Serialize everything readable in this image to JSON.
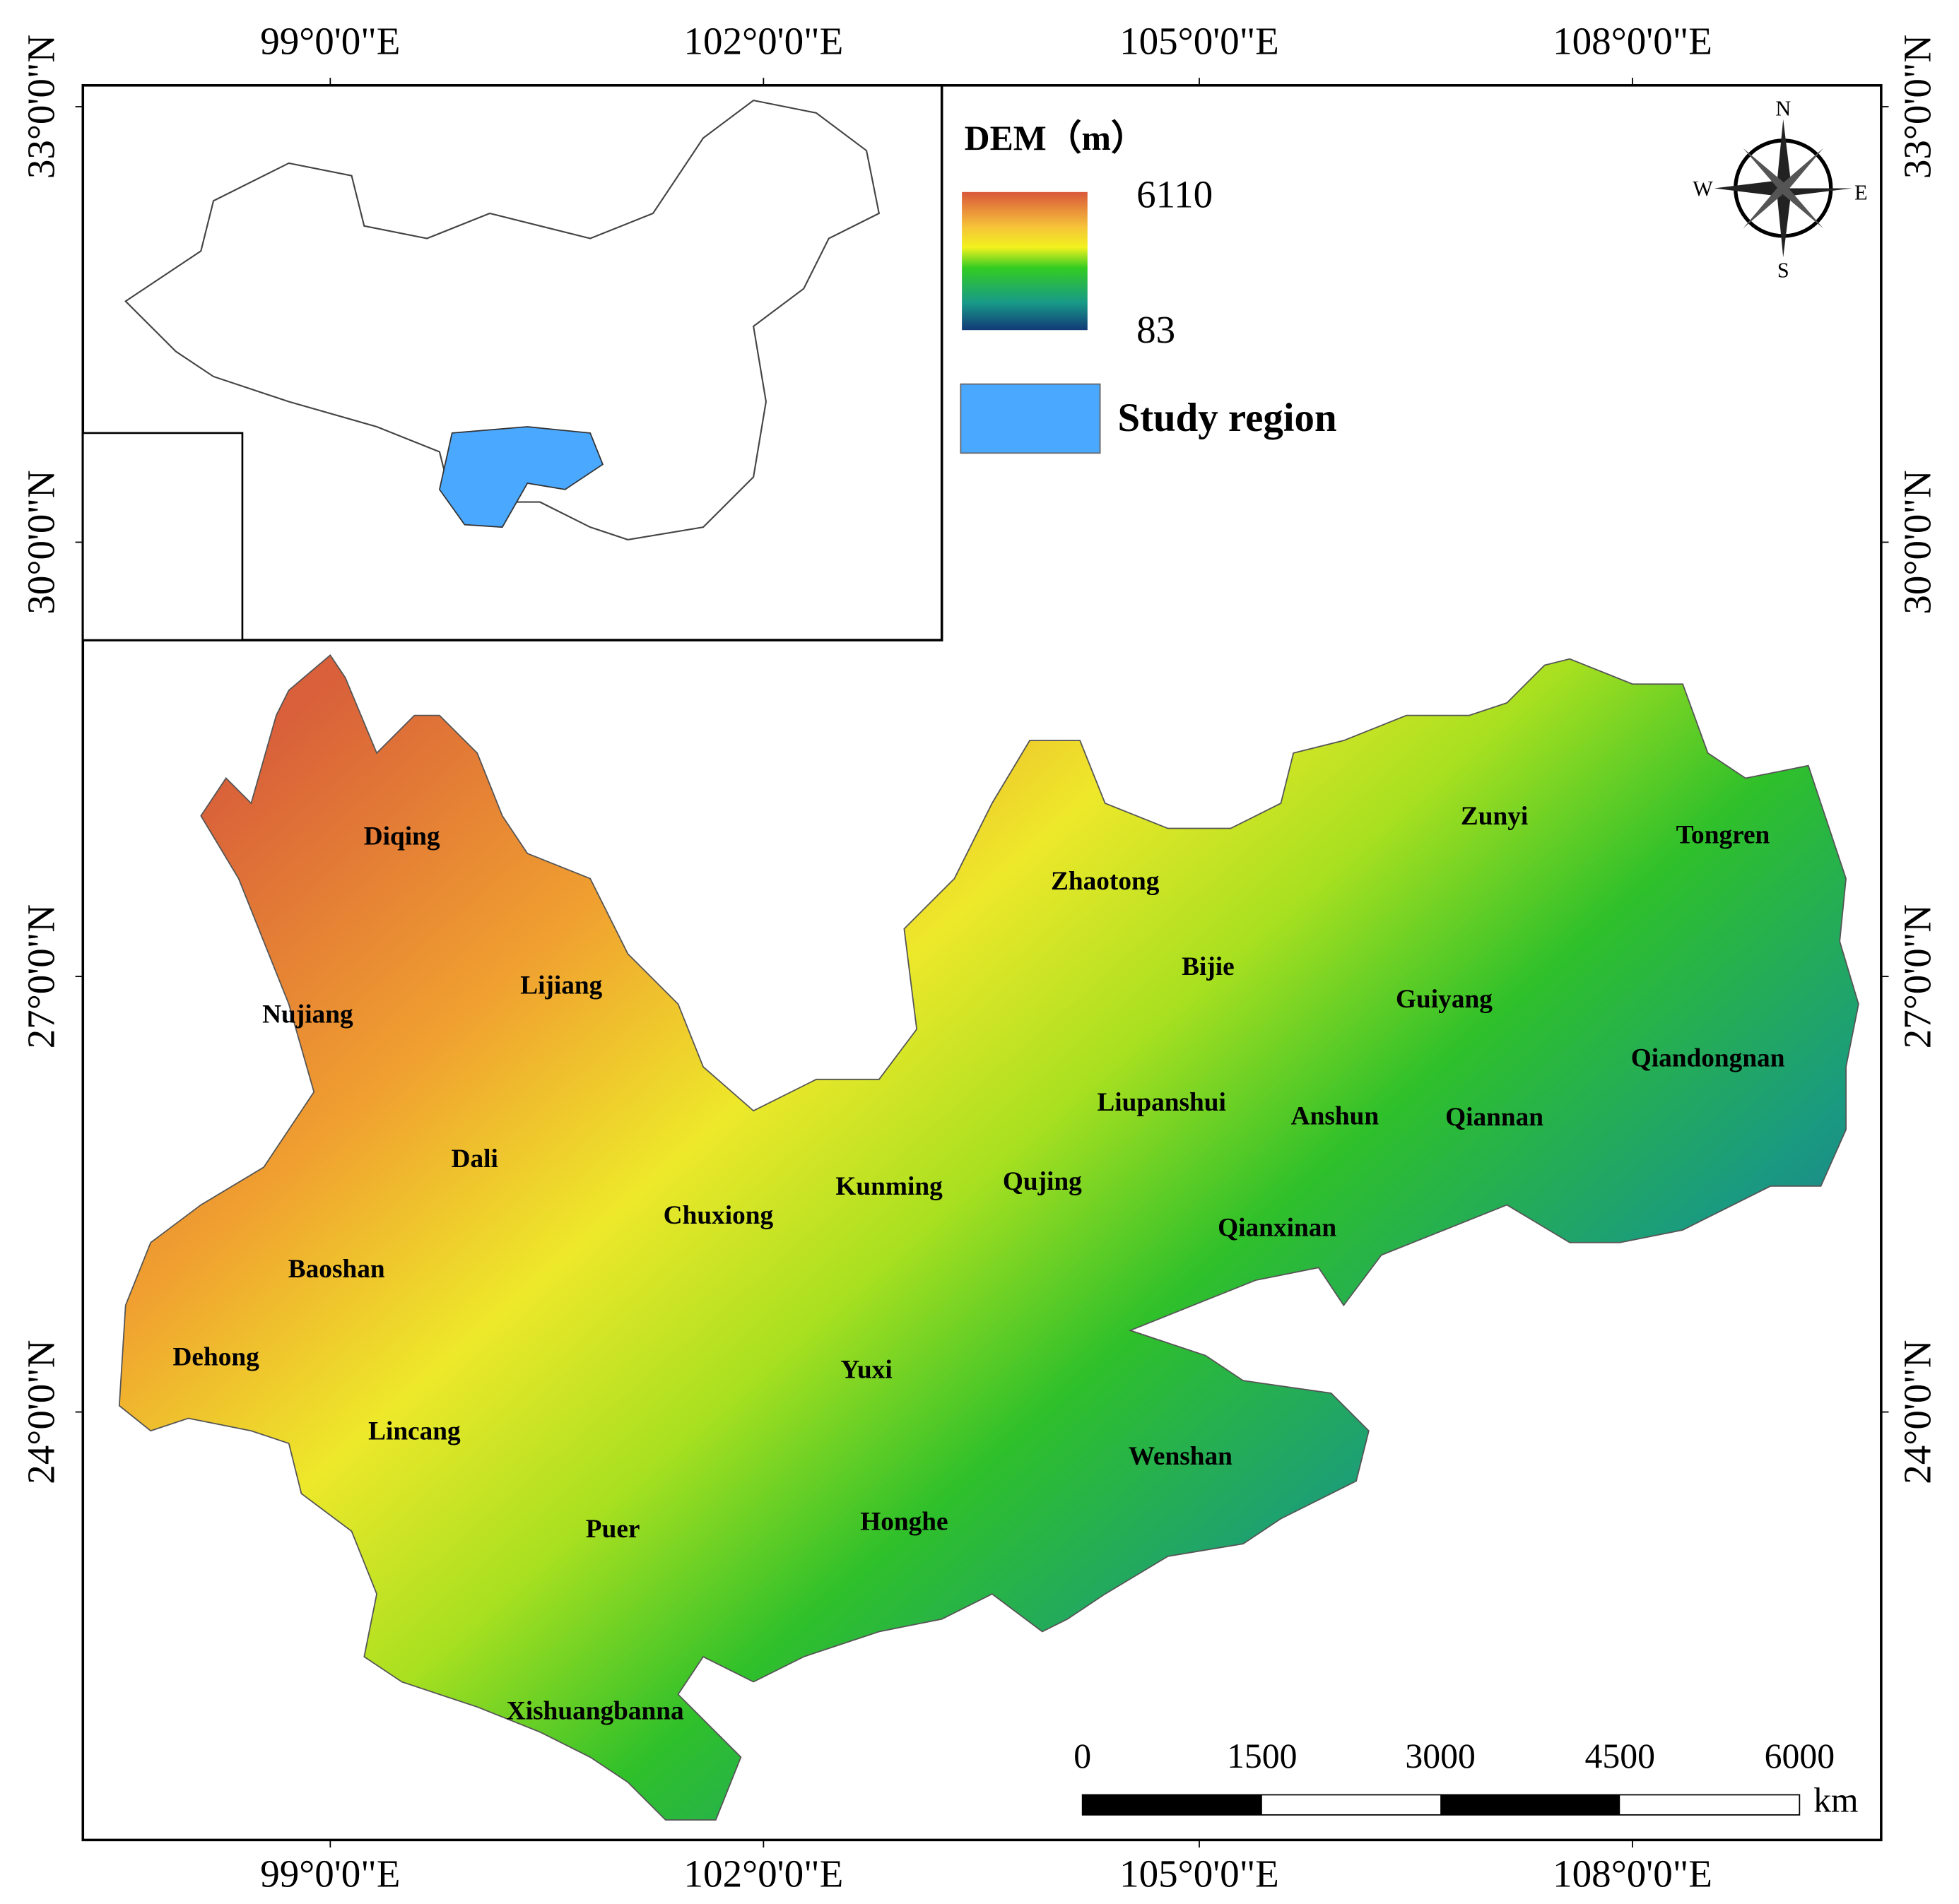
{
  "map": {
    "lon_labels": [
      "99°0'0\"E",
      "102°0'0\"E",
      "105°0'0\"E",
      "108°0'0\"E"
    ],
    "lat_labels": [
      "33°0'0\"N",
      "30°0'0\"N",
      "27°0'0\"N",
      "24°0'0\"N"
    ],
    "legend": {
      "title": "DEM（m）",
      "max": 6110,
      "min": 83,
      "study": "Study region"
    },
    "compass": {
      "n": "N",
      "s": "S",
      "e": "E",
      "w": "W"
    },
    "regions": [
      "Diqing",
      "Nujiang",
      "Lijiang",
      "Dali",
      "Baoshan",
      "Dehong",
      "Lincang",
      "Puer",
      "Xishuangbanna",
      "Chuxiong",
      "Kunming",
      "Qujing",
      "Yuxi",
      "Honghe",
      "Wenshan",
      "Zhaotong",
      "Bijie",
      "Liupanshui",
      "Anshun",
      "Qianxinan",
      "Guiyang",
      "Qiannan",
      "Zunyi",
      "Tongren",
      "Qiandongnan"
    ],
    "scale_bar": {
      "ticks": [
        0,
        1500,
        3000,
        4500,
        6000
      ],
      "unit": "km"
    }
  }
}
